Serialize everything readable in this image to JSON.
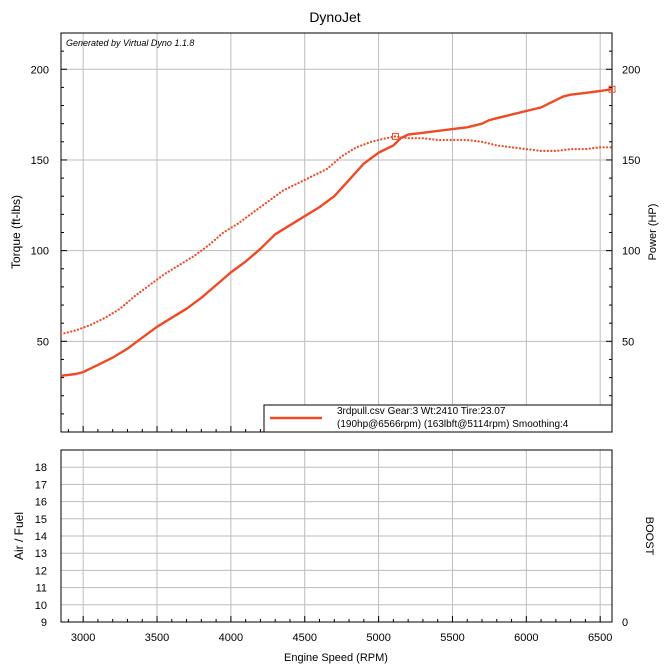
{
  "title": "DynoJet",
  "watermark": "Generated by Virtual Dyno 1.1.8",
  "colors": {
    "series": "#f04a24",
    "grid": "#bdbdbd",
    "frame": "#000000"
  },
  "chart_data": [
    {
      "type": "line",
      "panel": "power-torque",
      "xlabel": "",
      "ylabel": "Torque (ft-lbs)",
      "y2label": "Power (HP)",
      "xlim": [
        2850,
        6580
      ],
      "ylim": [
        0,
        220
      ],
      "y2lim": [
        0,
        220
      ],
      "yticks": [
        50,
        100,
        150,
        200
      ],
      "y2ticks": [
        50,
        100,
        150,
        200
      ],
      "grid": true,
      "legend": {
        "placement": "bottom-right",
        "line1": "3rdpull.csv Gear:3 Wt:2410 Tire:23.07",
        "line2": "(190hp@6566rpm) (163lbft@5114rpm) Smoothing:4"
      },
      "series": [
        {
          "axis": "y2",
          "style": "solid",
          "x": [
            2850,
            2950,
            3000,
            3100,
            3200,
            3300,
            3400,
            3500,
            3600,
            3700,
            3800,
            3900,
            4000,
            4100,
            4200,
            4300,
            4400,
            4500,
            4600,
            4700,
            4800,
            4900,
            5000,
            5100,
            5150,
            5200,
            5300,
            5400,
            5500,
            5600,
            5700,
            5750,
            5800,
            5900,
            6000,
            6100,
            6200,
            6250,
            6300,
            6400,
            6500,
            6580
          ],
          "y": [
            31,
            32,
            33,
            37,
            41,
            46,
            52,
            58,
            63,
            68,
            74,
            81,
            88,
            94,
            101,
            109,
            114,
            119,
            124,
            130,
            139,
            148,
            154,
            158,
            162,
            164,
            165,
            166,
            167,
            168,
            170,
            172,
            173,
            175,
            177,
            179,
            183,
            185,
            186,
            187,
            188,
            189
          ]
        },
        {
          "axis": "y",
          "style": "dotted",
          "x": [
            2850,
            2950,
            3050,
            3150,
            3250,
            3350,
            3450,
            3550,
            3650,
            3750,
            3850,
            3950,
            4050,
            4150,
            4250,
            4350,
            4450,
            4550,
            4650,
            4750,
            4850,
            4950,
            5050,
            5114,
            5200,
            5300,
            5400,
            5500,
            5600,
            5700,
            5800,
            5900,
            6000,
            6100,
            6200,
            6300,
            6400,
            6500,
            6580
          ],
          "y": [
            54,
            56,
            59,
            63,
            68,
            75,
            81,
            87,
            92,
            97,
            103,
            110,
            115,
            121,
            127,
            133,
            137,
            141,
            145,
            152,
            157,
            160,
            162,
            163,
            162,
            162,
            161,
            161,
            161,
            160,
            158,
            157,
            156,
            155,
            155,
            156,
            156,
            157,
            157
          ]
        }
      ]
    },
    {
      "type": "line",
      "panel": "air-fuel",
      "xlabel": "Engine Speed (RPM)",
      "ylabel": "Air / Fuel",
      "y2label": "BOOST",
      "xlim": [
        2850,
        6580
      ],
      "xticks": [
        3000,
        3500,
        4000,
        4500,
        5000,
        5500,
        6000,
        6500
      ],
      "ylim": [
        9,
        19
      ],
      "yticks": [
        9,
        10,
        11,
        12,
        13,
        14,
        15,
        16,
        17,
        18
      ],
      "y2ticks": [
        0
      ],
      "grid": true,
      "series": []
    }
  ]
}
